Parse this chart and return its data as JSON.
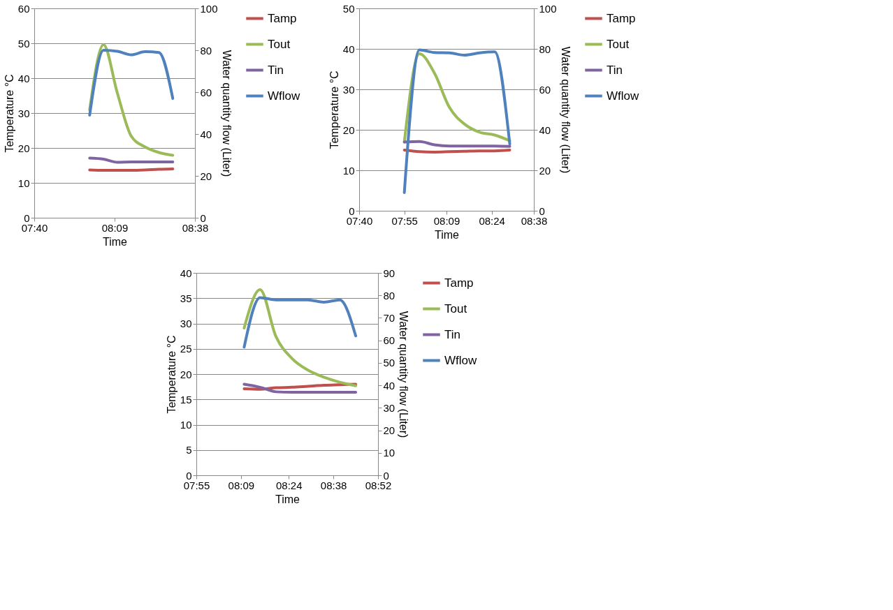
{
  "chart_data": [
    {
      "type": "line",
      "xlabel": "Time",
      "ylabel": "Temperature °C",
      "y2label": "Water quantity flow (Liter)",
      "x": [
        8.0,
        8.0833,
        8.1667,
        8.25,
        8.3333,
        8.4167,
        8.5
      ],
      "series": [
        {
          "name": "Tamp",
          "color": "#c0504d",
          "values": [
            13.7,
            13.6,
            13.6,
            13.6,
            13.7,
            13.9,
            14.0
          ]
        },
        {
          "name": "Tout",
          "color": "#9bbb59",
          "values": [
            30.9,
            49.6,
            35.7,
            23.4,
            20.3,
            18.7,
            17.9
          ]
        },
        {
          "name": "Tin",
          "color": "#8064a2",
          "values": [
            17.1,
            16.8,
            15.9,
            16.0,
            16.0,
            16.0,
            16.0
          ]
        },
        {
          "name": "Wflow",
          "color": "#4f81bd",
          "axis": "y2",
          "values": [
            49,
            80,
            79.5,
            77.8,
            79.3,
            78.9,
            57
          ]
        }
      ],
      "xlim": [
        7.6667,
        8.6333
      ],
      "xticks": [
        {
          "value": 7.6667,
          "label": "07:40"
        },
        {
          "value": 8.15,
          "label": "08:09"
        },
        {
          "value": 8.6333,
          "label": "08:38"
        }
      ],
      "ylim": [
        0,
        60
      ],
      "yticks": [
        0,
        10,
        20,
        30,
        40,
        50,
        60
      ],
      "y2lim": [
        0,
        100
      ],
      "y2ticks": [
        0,
        20,
        40,
        60,
        80,
        100
      ],
      "grid": "y",
      "legend": "right",
      "line_style": "solid",
      "marker": "none"
    },
    {
      "type": "line",
      "xlabel": "Time",
      "ylabel": "Temperature °C",
      "y2label": "Water quantity flow (Liter)",
      "x": [
        7.9167,
        8.0,
        8.0833,
        8.1667,
        8.25,
        8.3333,
        8.4167,
        8.5
      ],
      "series": [
        {
          "name": "Tamp",
          "color": "#c0504d",
          "values": [
            15.0,
            14.6,
            14.5,
            14.6,
            14.7,
            14.8,
            14.8,
            15.0
          ]
        },
        {
          "name": "Tout",
          "color": "#9bbb59",
          "values": [
            17.0,
            38.8,
            34.0,
            25.5,
            21.4,
            19.4,
            18.7,
            17.3
          ]
        },
        {
          "name": "Tin",
          "color": "#8064a2",
          "values": [
            17.0,
            17.1,
            16.3,
            16.0,
            16.0,
            16.0,
            16.0,
            15.9
          ]
        },
        {
          "name": "Wflow",
          "color": "#4f81bd",
          "axis": "y2",
          "values": [
            9,
            79.5,
            78.2,
            78.0,
            76.9,
            78.0,
            78.5,
            33
          ]
        }
      ],
      "xlim": [
        7.6667,
        8.6333
      ],
      "xticks": [
        {
          "value": 7.6667,
          "label": "07:40"
        },
        {
          "value": 7.9167,
          "label": "07:55"
        },
        {
          "value": 8.15,
          "label": "08:09"
        },
        {
          "value": 8.4,
          "label": "08:24"
        },
        {
          "value": 8.6333,
          "label": "08:38"
        }
      ],
      "ylim": [
        0,
        50
      ],
      "yticks": [
        0,
        10,
        20,
        30,
        40,
        50
      ],
      "y2lim": [
        0,
        100
      ],
      "y2ticks": [
        0,
        20,
        40,
        60,
        80,
        100
      ],
      "grid": "y",
      "legend": "right",
      "line_style": "solid",
      "marker": "none"
    },
    {
      "type": "line",
      "xlabel": "Time",
      "ylabel": "Temperature °C",
      "y2label": "Water quantity flow (Liter)",
      "x": [
        8.1667,
        8.25,
        8.3333,
        8.4167,
        8.5,
        8.5833,
        8.6667,
        8.75
      ],
      "series": [
        {
          "name": "Tamp",
          "color": "#c0504d",
          "values": [
            17.1,
            17.0,
            17.3,
            17.4,
            17.6,
            17.8,
            17.9,
            18.0
          ]
        },
        {
          "name": "Tout",
          "color": "#9bbb59",
          "values": [
            29.1,
            36.7,
            27.4,
            23.1,
            20.8,
            19.4,
            18.4,
            17.7
          ]
        },
        {
          "name": "Tin",
          "color": "#8064a2",
          "values": [
            18.0,
            17.4,
            16.5,
            16.4,
            16.4,
            16.4,
            16.4,
            16.4
          ]
        },
        {
          "name": "Wflow",
          "color": "#4f81bd",
          "axis": "y2",
          "values": [
            57,
            79,
            78,
            78,
            78,
            77,
            78,
            62
          ]
        }
      ],
      "xlim": [
        7.9167,
        8.8667
      ],
      "xticks": [
        {
          "value": 7.9167,
          "label": "07:55"
        },
        {
          "value": 8.15,
          "label": "08:09"
        },
        {
          "value": 8.4,
          "label": "08:24"
        },
        {
          "value": 8.6333,
          "label": "08:38"
        },
        {
          "value": 8.8667,
          "label": "08:52"
        }
      ],
      "ylim": [
        0,
        40
      ],
      "yticks": [
        0,
        5,
        10,
        15,
        20,
        25,
        30,
        35,
        40
      ],
      "y2lim": [
        0,
        90
      ],
      "y2ticks": [
        0,
        10,
        20,
        30,
        40,
        50,
        60,
        70,
        80,
        90
      ],
      "grid": "y",
      "legend": "right",
      "line_style": "solid",
      "marker": "none"
    }
  ]
}
